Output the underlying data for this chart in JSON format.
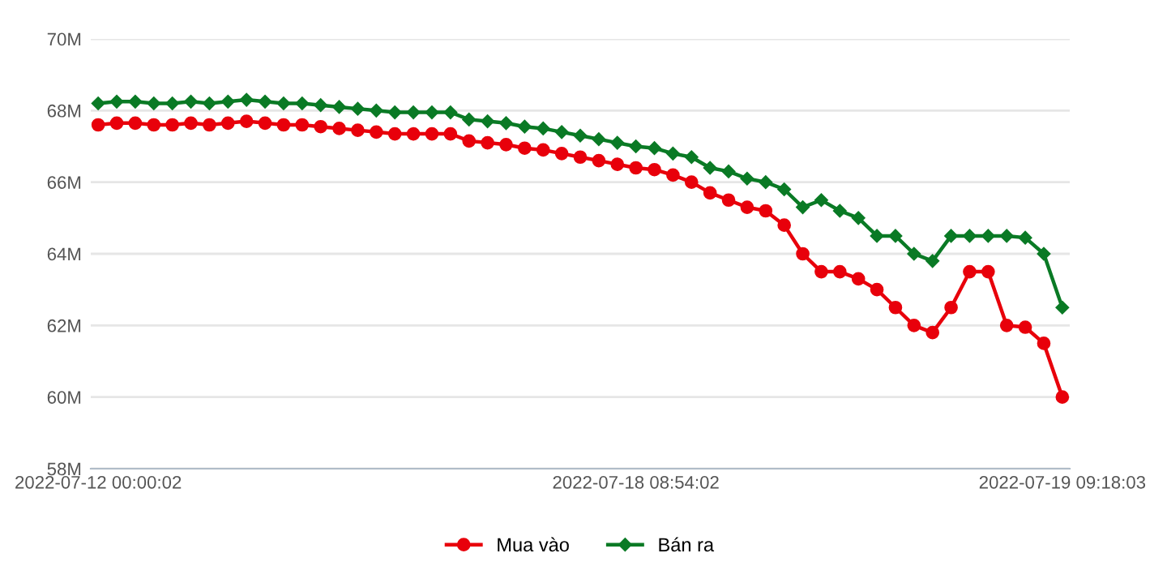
{
  "chart_data": {
    "type": "line",
    "categories": [
      "2022-07-12 00:00:02",
      null,
      null,
      null,
      null,
      null,
      null,
      null,
      null,
      null,
      null,
      null,
      null,
      null,
      null,
      null,
      null,
      null,
      null,
      null,
      null,
      null,
      null,
      null,
      null,
      null,
      null,
      null,
      null,
      "2022-07-18 08:54:02",
      null,
      null,
      null,
      null,
      null,
      null,
      null,
      null,
      null,
      null,
      null,
      null,
      null,
      null,
      null,
      null,
      null,
      null,
      null,
      null,
      null,
      null,
      "2022-07-19 09:18:03"
    ],
    "series": [
      {
        "name": "Mua vào",
        "color": "#e8000b",
        "marker": "circle",
        "values": [
          67.6,
          67.65,
          67.65,
          67.6,
          67.6,
          67.65,
          67.6,
          67.65,
          67.7,
          67.65,
          67.6,
          67.6,
          67.55,
          67.5,
          67.45,
          67.4,
          67.35,
          67.35,
          67.35,
          67.35,
          67.15,
          67.1,
          67.05,
          66.95,
          66.9,
          66.8,
          66.7,
          66.6,
          66.5,
          66.4,
          66.35,
          66.2,
          66.0,
          65.7,
          65.5,
          65.3,
          65.2,
          64.8,
          64.0,
          63.5,
          63.5,
          63.3,
          63.0,
          62.5,
          62.0,
          61.8,
          62.5,
          63.5,
          63.5,
          62.0,
          61.95,
          61.5,
          60.0
        ]
      },
      {
        "name": "Bán ra",
        "color": "#0a7a25",
        "marker": "diamond",
        "values": [
          68.2,
          68.25,
          68.25,
          68.2,
          68.2,
          68.25,
          68.2,
          68.25,
          68.3,
          68.25,
          68.2,
          68.2,
          68.15,
          68.1,
          68.05,
          68.0,
          67.95,
          67.95,
          67.95,
          67.95,
          67.75,
          67.7,
          67.65,
          67.55,
          67.5,
          67.4,
          67.3,
          67.2,
          67.1,
          67.0,
          66.95,
          66.8,
          66.7,
          66.4,
          66.3,
          66.1,
          66.0,
          65.8,
          65.3,
          65.5,
          65.2,
          65.0,
          64.5,
          64.5,
          64.0,
          63.8,
          64.5,
          64.5,
          64.5,
          64.5,
          64.45,
          64.0,
          62.5
        ]
      }
    ],
    "ylim": [
      58,
      70
    ],
    "yticks": [
      {
        "value": 58,
        "label": "58M"
      },
      {
        "value": 60,
        "label": "60M"
      },
      {
        "value": 62,
        "label": "62M"
      },
      {
        "value": 64,
        "label": "64M"
      },
      {
        "value": 66,
        "label": "66M"
      },
      {
        "value": 68,
        "label": "68M"
      },
      {
        "value": 70,
        "label": "70M"
      }
    ],
    "grid": "y",
    "legend": "bottom",
    "line_style": "solid"
  }
}
